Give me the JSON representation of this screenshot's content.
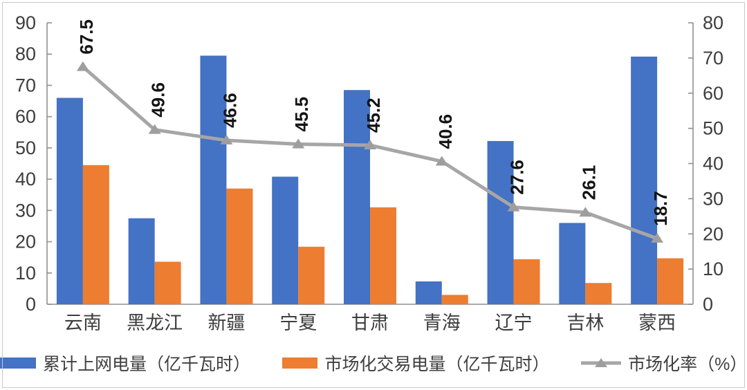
{
  "chart_data": {
    "type": "bar",
    "subtype": "combo-bar-line-dual-axis",
    "title": "",
    "categories": [
      "云南",
      "黑龙江",
      "新疆",
      "宁夏",
      "甘肃",
      "青海",
      "辽宁",
      "吉林",
      "蒙西"
    ],
    "series": [
      {
        "name": "累计上网电量（亿千瓦时）",
        "kind": "bar",
        "axis": "left",
        "color": "#4472C4",
        "values": [
          66,
          27.5,
          79.5,
          40.8,
          68.5,
          7.3,
          52.2,
          26,
          79.2
        ]
      },
      {
        "name": "市场化交易电量（亿千瓦时）",
        "kind": "bar",
        "axis": "left",
        "color": "#ED7D31",
        "values": [
          44.5,
          13.6,
          37,
          18.4,
          31,
          3,
          14.4,
          6.8,
          14.7
        ]
      },
      {
        "name": "市场化率（%）",
        "kind": "line",
        "axis": "right",
        "color": "#A6A6A6",
        "marker": "triangle",
        "marker_color": "#9E9E9E",
        "values": [
          67.5,
          49.6,
          46.6,
          45.5,
          45.2,
          40.6,
          27.6,
          26.1,
          18.7
        ],
        "data_labels": [
          "67.5",
          "49.6",
          "46.6",
          "45.5",
          "45.2",
          "40.6",
          "27.6",
          "26.1",
          "18.7"
        ]
      }
    ],
    "left_axis": {
      "min": 0,
      "max": 90,
      "ticks": [
        90,
        80,
        70,
        60,
        50,
        40,
        30,
        20,
        10,
        0
      ]
    },
    "right_axis": {
      "min": 0,
      "max": 80,
      "ticks": [
        80,
        70,
        60,
        50,
        40,
        30,
        20,
        10,
        0
      ]
    },
    "grid": false,
    "legend_position": "bottom",
    "axis_text_color": "#3d3d3d",
    "axis_line_color": "#8f8f8f",
    "data_label_color": "#141414"
  },
  "legend": {
    "items": [
      {
        "label": "累计上网电量（亿千瓦时）",
        "swatch": "blue-bar"
      },
      {
        "label": "市场化交易电量（亿千瓦时）",
        "swatch": "orange-bar"
      },
      {
        "label": "市场化率（%）",
        "swatch": "gray-line-triangle"
      }
    ]
  }
}
